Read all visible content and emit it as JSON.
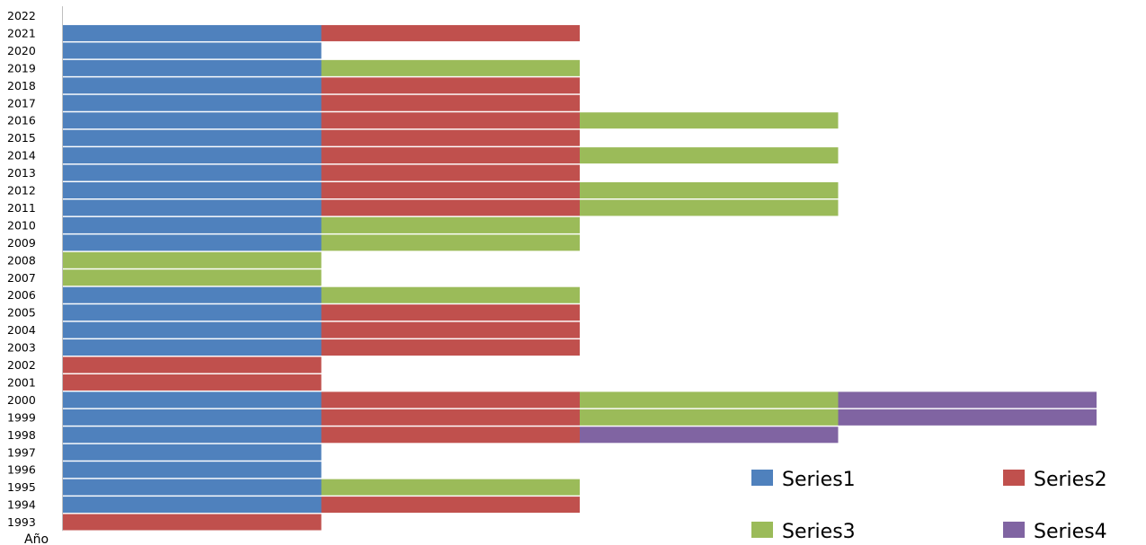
{
  "chart_data": {
    "type": "bar",
    "orientation": "horizontal",
    "stacked": true,
    "title": "",
    "ylabel": "Año",
    "xlabel": "",
    "categories": [
      "1993",
      "1994",
      "1995",
      "1996",
      "1997",
      "1998",
      "1999",
      "2000",
      "2001",
      "2002",
      "2003",
      "2004",
      "2005",
      "2006",
      "2007",
      "2008",
      "2009",
      "2010",
      "2011",
      "2012",
      "2013",
      "2014",
      "2015",
      "2016",
      "2017",
      "2018",
      "2019",
      "2020",
      "2021",
      "2022"
    ],
    "series": [
      {
        "name": "Series1",
        "color": "#4F81BD",
        "values": [
          0,
          1,
          1,
          1,
          1,
          1,
          1,
          1,
          0,
          0,
          1,
          1,
          1,
          1,
          0,
          0,
          1,
          1,
          1,
          1,
          1,
          1,
          1,
          1,
          1,
          1,
          1,
          1,
          1,
          0
        ]
      },
      {
        "name": "Series2",
        "color": "#C0504D",
        "values": [
          1,
          1,
          0,
          0,
          0,
          1,
          1,
          1,
          1,
          1,
          1,
          1,
          1,
          0,
          0,
          0,
          0,
          0,
          1,
          1,
          1,
          1,
          1,
          1,
          1,
          1,
          0,
          0,
          1,
          0
        ]
      },
      {
        "name": "Series3",
        "color": "#9BBB59",
        "values": [
          0,
          0,
          1,
          0,
          0,
          0,
          1,
          1,
          0,
          0,
          0,
          0,
          0,
          1,
          1,
          1,
          1,
          1,
          1,
          1,
          0,
          1,
          0,
          1,
          0,
          0,
          1,
          0,
          0,
          0
        ]
      },
      {
        "name": "Series4",
        "color": "#8064A2",
        "values": [
          0,
          0,
          0,
          0,
          0,
          1,
          1,
          1,
          0,
          0,
          0,
          0,
          0,
          0,
          0,
          0,
          0,
          0,
          0,
          0,
          0,
          0,
          0,
          0,
          0,
          0,
          0,
          0,
          0,
          0
        ]
      }
    ],
    "xlim": [
      0,
      4
    ],
    "grid": false,
    "legend_position": "bottom-right",
    "axis_color": "#BFBFBF"
  }
}
